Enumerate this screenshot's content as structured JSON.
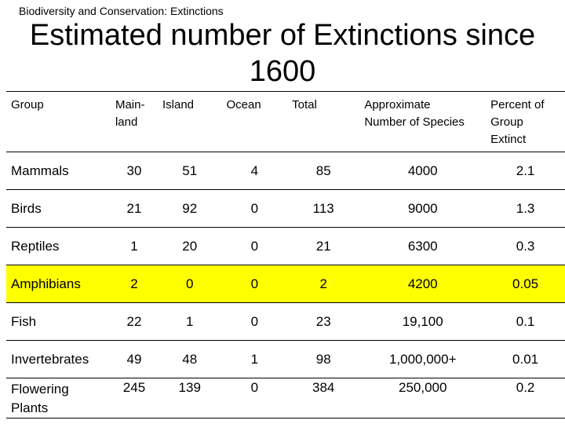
{
  "breadcrumb": "Biodiversity and Conservation:  Extinctions",
  "title": "Estimated number of Extinctions since 1600",
  "table": {
    "headers": [
      [
        "Group"
      ],
      [
        "Main-",
        "land"
      ],
      [
        "Island"
      ],
      [
        "Ocean"
      ],
      [
        "Total"
      ],
      [
        "Approximate",
        "Number of Species"
      ],
      [
        "Percent of",
        "Group",
        "Extinct"
      ]
    ],
    "rows": [
      {
        "group": [
          "Mammals"
        ],
        "mainland": "30",
        "island": "51",
        "ocean": "4",
        "total": "85",
        "species": "4000",
        "percent": "2.1",
        "highlight": false
      },
      {
        "group": [
          "Birds"
        ],
        "mainland": "21",
        "island": "92",
        "ocean": "0",
        "total": "113",
        "species": "9000",
        "percent": "1.3",
        "highlight": false
      },
      {
        "group": [
          "Reptiles"
        ],
        "mainland": "1",
        "island": "20",
        "ocean": "0",
        "total": "21",
        "species": "6300",
        "percent": "0.3",
        "highlight": false
      },
      {
        "group": [
          "Amphibians"
        ],
        "mainland": "2",
        "island": "0",
        "ocean": "0",
        "total": "2",
        "species": "4200",
        "percent": "0.05",
        "highlight": true,
        "highlight_color": "#ffff00"
      },
      {
        "group": [
          "Fish"
        ],
        "mainland": "22",
        "island": "1",
        "ocean": "0",
        "total": "23",
        "species": "19,100",
        "percent": "0.1",
        "highlight": false
      },
      {
        "group": [
          "Invertebrates"
        ],
        "mainland": "49",
        "island": "48",
        "ocean": "1",
        "total": "98",
        "species": "1,000,000+",
        "percent": "0.01",
        "highlight": false
      },
      {
        "group": [
          "Flowering",
          "Plants"
        ],
        "mainland": "245",
        "island": "139",
        "ocean": "0",
        "total": "384",
        "species": "250,000",
        "percent": "0.2",
        "highlight": false
      }
    ]
  }
}
